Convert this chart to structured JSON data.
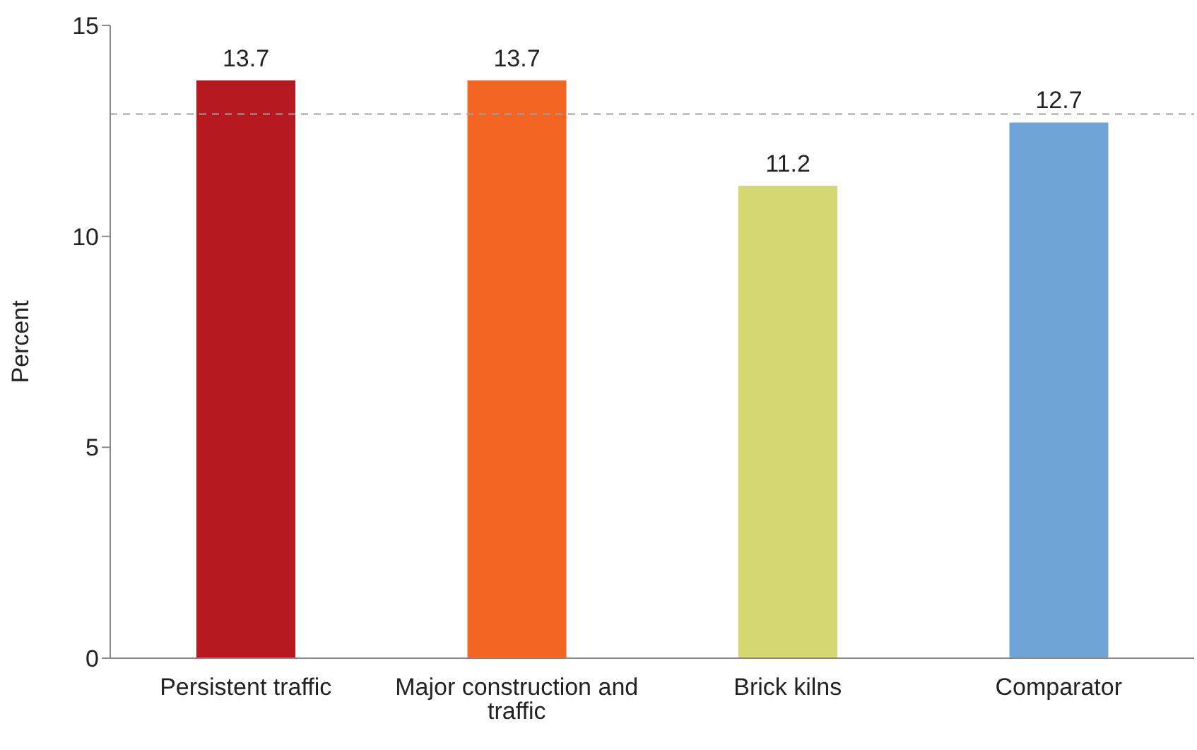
{
  "chart_data": {
    "type": "bar",
    "ylabel": "Percent",
    "categories": [
      "Persistent traffic",
      "Major construction and traffic",
      "Brick kilns",
      "Comparator"
    ],
    "values": [
      13.7,
      13.7,
      11.2,
      12.7
    ],
    "colors": [
      "#b5191f",
      "#f26522",
      "#d4d873",
      "#6fa5d6"
    ],
    "ylim": [
      0,
      15
    ],
    "yticks": [
      0,
      5,
      10,
      15
    ],
    "grid": false,
    "data_labels": true,
    "ref_lines": [
      {
        "axis": "y",
        "value": 12.9,
        "color": "#a0a0a0",
        "line_style": "dashed"
      }
    ]
  }
}
